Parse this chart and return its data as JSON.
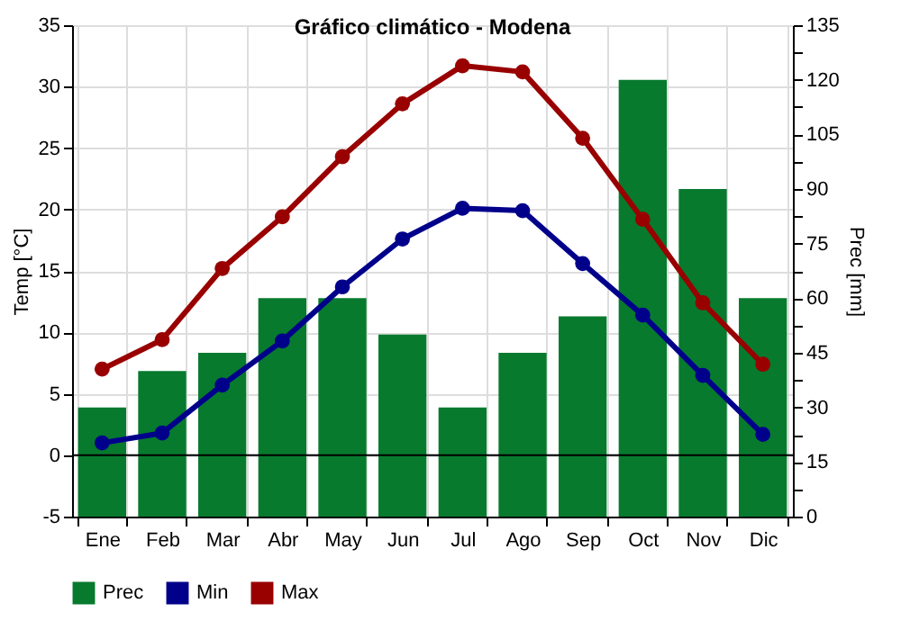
{
  "chart_data": {
    "type": "line",
    "title": "Gráfico climático - Modena",
    "categories": [
      "Ene",
      "Feb",
      "Mar",
      "Abr",
      "May",
      "Jun",
      "Jul",
      "Ago",
      "Sep",
      "Oct",
      "Nov",
      "Dic"
    ],
    "ylabel": "Temp [°C]",
    "y2label": "Prec [mm]",
    "ylim": [
      -5,
      35
    ],
    "yticks": [
      -5,
      0,
      5,
      10,
      15,
      20,
      25,
      30,
      35
    ],
    "y2lim": [
      0,
      135
    ],
    "y2ticks": [
      0,
      {
        "value": 7.5,
        "label": null
      },
      15,
      {
        "value": 22.5,
        "label": null
      },
      30,
      {
        "value": 37.5,
        "label": null
      },
      45,
      {
        "value": 52.5,
        "label": null
      },
      60,
      {
        "value": 67.5,
        "label": null
      },
      75,
      {
        "value": 82.5,
        "label": null
      },
      90,
      {
        "value": 97.5,
        "label": null
      },
      105,
      {
        "value": 112.5,
        "label": null
      },
      120,
      {
        "value": 127.5,
        "label": null
      },
      135
    ],
    "series": [
      {
        "name": "Prec",
        "type": "bar",
        "axis": "y2",
        "color": "#077a2e",
        "values": [
          30,
          40,
          45,
          60,
          60,
          50,
          30,
          45,
          55,
          120,
          90,
          60
        ]
      },
      {
        "name": "Min",
        "type": "line",
        "color": "#00008b",
        "values": [
          1.0,
          1.8,
          5.7,
          9.3,
          13.7,
          17.6,
          20.1,
          19.9,
          15.6,
          11.4,
          6.5,
          1.7
        ]
      },
      {
        "name": "Max",
        "type": "line",
        "color": "#990000",
        "values": [
          7.0,
          9.4,
          15.2,
          19.4,
          24.3,
          28.6,
          31.7,
          31.2,
          25.8,
          19.2,
          12.4,
          7.4
        ]
      }
    ],
    "ref_lines": [
      {
        "axis": "y",
        "value": 0,
        "color": "#000000"
      }
    ],
    "grid": true,
    "legend": "bottom",
    "marker": "circle",
    "line_style": "solid"
  }
}
